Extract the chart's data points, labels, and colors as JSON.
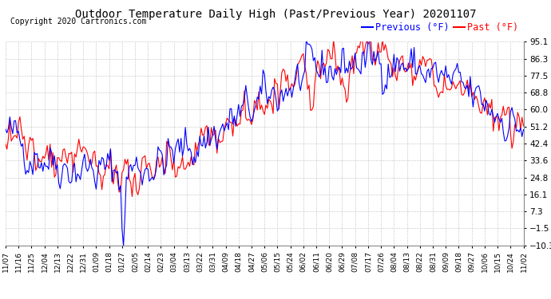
{
  "title": "Outdoor Temperature Daily High (Past/Previous Year) 20201107",
  "copyright": "Copyright 2020 Cartronics.com",
  "legend_previous": "Previous (°F)",
  "legend_past": "Past (°F)",
  "color_previous": "blue",
  "color_past": "red",
  "yticks": [
    -10.3,
    -1.5,
    7.3,
    16.1,
    24.8,
    33.6,
    42.4,
    51.2,
    60.0,
    68.8,
    77.5,
    86.3,
    95.1
  ],
  "xtick_labels": [
    "11/07",
    "11/16",
    "11/25",
    "12/04",
    "12/13",
    "12/22",
    "12/31",
    "01/09",
    "01/18",
    "01/27",
    "02/05",
    "02/14",
    "02/23",
    "03/04",
    "03/13",
    "03/22",
    "03/31",
    "04/09",
    "04/18",
    "04/27",
    "05/06",
    "05/15",
    "05/24",
    "06/02",
    "06/11",
    "06/20",
    "06/29",
    "07/08",
    "07/17",
    "07/26",
    "08/04",
    "08/13",
    "08/22",
    "08/31",
    "09/09",
    "09/18",
    "09/27",
    "10/06",
    "10/15",
    "10/24",
    "11/02"
  ],
  "ylim": [
    -10.3,
    95.1
  ],
  "background_color": "#ffffff",
  "grid_color": "#aaaaaa",
  "title_fontsize": 10,
  "copyright_fontsize": 7,
  "legend_fontsize": 8.5,
  "line_width": 0.8
}
